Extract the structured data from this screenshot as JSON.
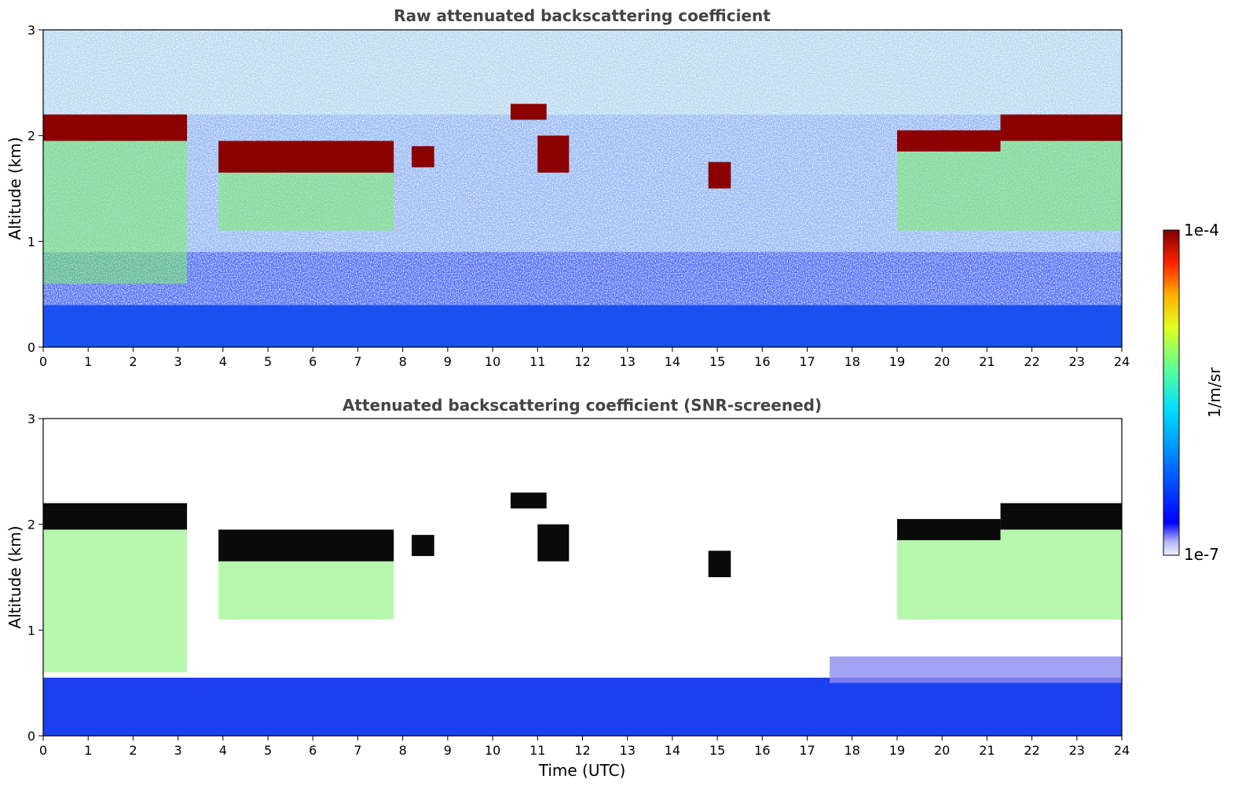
{
  "chart_data": [
    {
      "type": "heatmap",
      "title": "Raw attenuated backscattering coefficient",
      "xlabel": "",
      "ylabel": "Altitude (km)",
      "xlim": [
        0,
        24
      ],
      "ylim": [
        0,
        3
      ],
      "xticks": [
        "0",
        "1",
        "2",
        "3",
        "4",
        "5",
        "6",
        "7",
        "8",
        "9",
        "10",
        "11",
        "12",
        "13",
        "14",
        "15",
        "16",
        "17",
        "18",
        "19",
        "20",
        "21",
        "22",
        "23",
        "24"
      ],
      "yticks": [
        "0",
        "1",
        "2",
        "3"
      ],
      "screened": false,
      "cloud_layers": [
        {
          "t_start": 0.0,
          "t_end": 3.2,
          "base_km": 1.95,
          "top_km": 2.2
        },
        {
          "t_start": 3.9,
          "t_end": 7.8,
          "base_km": 1.65,
          "top_km": 1.95
        },
        {
          "t_start": 8.2,
          "t_end": 8.7,
          "base_km": 1.7,
          "top_km": 1.9
        },
        {
          "t_start": 10.4,
          "t_end": 11.2,
          "base_km": 2.15,
          "top_km": 2.3
        },
        {
          "t_start": 11.0,
          "t_end": 11.7,
          "base_km": 1.65,
          "top_km": 2.0
        },
        {
          "t_start": 14.8,
          "t_end": 15.3,
          "base_km": 1.5,
          "top_km": 1.75
        },
        {
          "t_start": 19.0,
          "t_end": 21.3,
          "base_km": 1.85,
          "top_km": 2.05
        },
        {
          "t_start": 21.3,
          "t_end": 24.0,
          "base_km": 1.95,
          "top_km": 2.2
        }
      ]
    },
    {
      "type": "heatmap",
      "title": "Attenuated backscattering coefficient (SNR-screened)",
      "xlabel": "Time (UTC)",
      "ylabel": "Altitude (km)",
      "xlim": [
        0,
        24
      ],
      "ylim": [
        0,
        3
      ],
      "xticks": [
        "0",
        "1",
        "2",
        "3",
        "4",
        "5",
        "6",
        "7",
        "8",
        "9",
        "10",
        "11",
        "12",
        "13",
        "14",
        "15",
        "16",
        "17",
        "18",
        "19",
        "20",
        "21",
        "22",
        "23",
        "24"
      ],
      "yticks": [
        "0",
        "1",
        "2",
        "3"
      ],
      "screened": true
    }
  ],
  "colorbar": {
    "label": "1/m/sr",
    "max_label": "1e-4",
    "min_label": "1e-7",
    "range": [
      1e-07,
      0.0001
    ],
    "colormap": "jet",
    "colors": [
      "#f0f0ff",
      "#b8b8f8",
      "#0000ff",
      "#0080ff",
      "#00e0ff",
      "#60ff90",
      "#e0ff20",
      "#ffb000",
      "#ff2000",
      "#800000"
    ]
  }
}
